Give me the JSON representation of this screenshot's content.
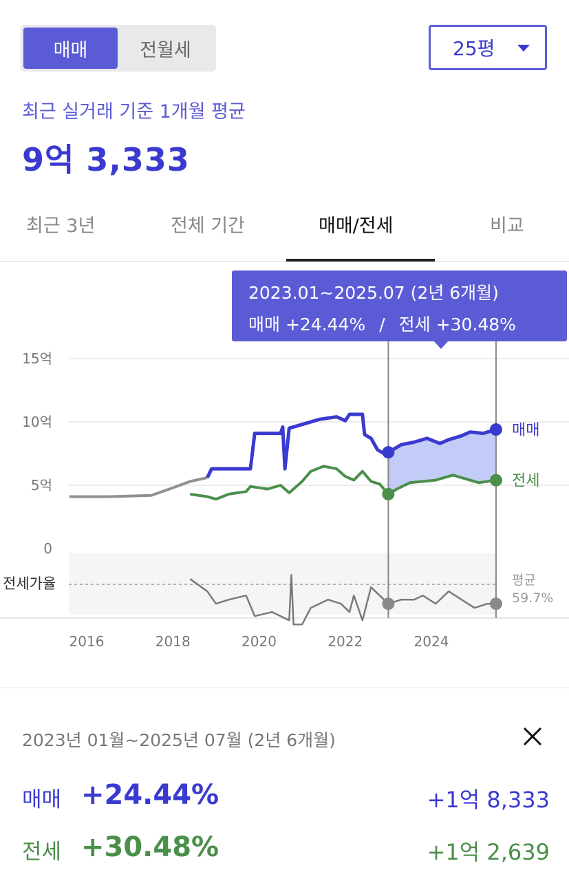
{
  "toggle": {
    "sale": "매매",
    "rent": "전월세"
  },
  "area_select": {
    "value": "25평"
  },
  "summary": {
    "subtitle": "최근 실거래 기준 1개월 평균",
    "price": "9억 3,333"
  },
  "tabs": [
    "최근 3년",
    "전체 기간",
    "매매/전세",
    "비교"
  ],
  "tooltip": {
    "period": "2023.01~2025.07 (2년 6개월)",
    "sale": "매매 +24.44%",
    "sep": "/",
    "rent": "전세 +30.48%"
  },
  "colors": {
    "accent": "#5b5bd6",
    "sale": "#3a3ad0",
    "rent": "#4a8f4a",
    "ratio": "#888888"
  },
  "chart_data": {
    "type": "line",
    "x_ticks": [
      "2016",
      "2018",
      "2020",
      "2022",
      "2024"
    ],
    "y_ticks": [
      "15억",
      "10억",
      "5억",
      "0"
    ],
    "ylim": [
      0,
      15
    ],
    "ratio_label": "전세가율",
    "avg_label": "평균",
    "avg_value": "59.7%",
    "series": [
      {
        "name": "매매",
        "points": [
          [
            2015.6,
            4.1
          ],
          [
            2016.5,
            4.1
          ],
          [
            2017.5,
            4.2
          ],
          [
            2018.0,
            4.8
          ],
          [
            2018.4,
            5.3
          ],
          [
            2018.8,
            5.6
          ],
          [
            2018.9,
            6.3
          ],
          [
            2019.0,
            6.3
          ],
          [
            2019.8,
            6.3
          ],
          [
            2019.9,
            9.1
          ],
          [
            2020.5,
            9.1
          ],
          [
            2020.55,
            9.6
          ],
          [
            2020.6,
            6.3
          ],
          [
            2020.7,
            9.5
          ],
          [
            2021.0,
            9.8
          ],
          [
            2021.4,
            10.2
          ],
          [
            2021.8,
            10.4
          ],
          [
            2022.0,
            10.1
          ],
          [
            2022.1,
            10.6
          ],
          [
            2022.4,
            10.6
          ],
          [
            2022.45,
            9.0
          ],
          [
            2022.6,
            8.7
          ],
          [
            2022.75,
            7.8
          ],
          [
            2022.9,
            7.5
          ],
          [
            2023.0,
            7.6
          ],
          [
            2023.3,
            8.2
          ],
          [
            2023.6,
            8.4
          ],
          [
            2023.9,
            8.7
          ],
          [
            2024.2,
            8.3
          ],
          [
            2024.4,
            8.6
          ],
          [
            2024.7,
            8.9
          ],
          [
            2024.9,
            9.2
          ],
          [
            2025.2,
            9.1
          ],
          [
            2025.5,
            9.4
          ]
        ]
      },
      {
        "name": "전세",
        "points": [
          [
            2018.4,
            4.3
          ],
          [
            2018.8,
            4.1
          ],
          [
            2019.0,
            3.9
          ],
          [
            2019.3,
            4.3
          ],
          [
            2019.7,
            4.5
          ],
          [
            2019.8,
            4.9
          ],
          [
            2020.2,
            4.7
          ],
          [
            2020.5,
            5.0
          ],
          [
            2020.7,
            4.4
          ],
          [
            2021.0,
            5.3
          ],
          [
            2021.2,
            6.1
          ],
          [
            2021.5,
            6.5
          ],
          [
            2021.8,
            6.3
          ],
          [
            2022.0,
            5.7
          ],
          [
            2022.2,
            5.4
          ],
          [
            2022.4,
            6.1
          ],
          [
            2022.6,
            5.3
          ],
          [
            2022.8,
            5.1
          ],
          [
            2023.0,
            4.3
          ],
          [
            2023.2,
            4.7
          ],
          [
            2023.5,
            5.2
          ],
          [
            2023.8,
            5.3
          ],
          [
            2024.1,
            5.4
          ],
          [
            2024.5,
            5.8
          ],
          [
            2024.8,
            5.5
          ],
          [
            2025.1,
            5.2
          ],
          [
            2025.5,
            5.4
          ]
        ]
      },
      {
        "name": "전세가율",
        "points": [
          [
            2018.4,
            61
          ],
          [
            2018.8,
            58
          ],
          [
            2019.0,
            55
          ],
          [
            2019.3,
            56
          ],
          [
            2019.7,
            57
          ],
          [
            2019.9,
            52
          ],
          [
            2020.3,
            53
          ],
          [
            2020.7,
            51
          ],
          [
            2020.75,
            62
          ],
          [
            2020.8,
            50
          ],
          [
            2021.0,
            50
          ],
          [
            2021.2,
            54
          ],
          [
            2021.6,
            56
          ],
          [
            2021.9,
            55
          ],
          [
            2022.1,
            53
          ],
          [
            2022.2,
            57
          ],
          [
            2022.4,
            51
          ],
          [
            2022.6,
            59
          ],
          [
            2022.9,
            56
          ],
          [
            2023.0,
            55
          ],
          [
            2023.3,
            56
          ],
          [
            2023.6,
            56
          ],
          [
            2023.8,
            57
          ],
          [
            2024.1,
            55
          ],
          [
            2024.4,
            58
          ],
          [
            2024.7,
            56
          ],
          [
            2025.0,
            54
          ],
          [
            2025.3,
            55
          ],
          [
            2025.5,
            55
          ]
        ]
      }
    ],
    "selection": {
      "start": 2023.0,
      "end": 2025.5
    }
  },
  "detail": {
    "period": "2023년 01월~2025년 07월 (2년 6개월)",
    "sale_label": "매매",
    "sale_pct": "+24.44%",
    "sale_amount": "+1억 8,333",
    "rent_label": "전세",
    "rent_pct": "+30.48%",
    "rent_amount": "+1억 2,639"
  }
}
